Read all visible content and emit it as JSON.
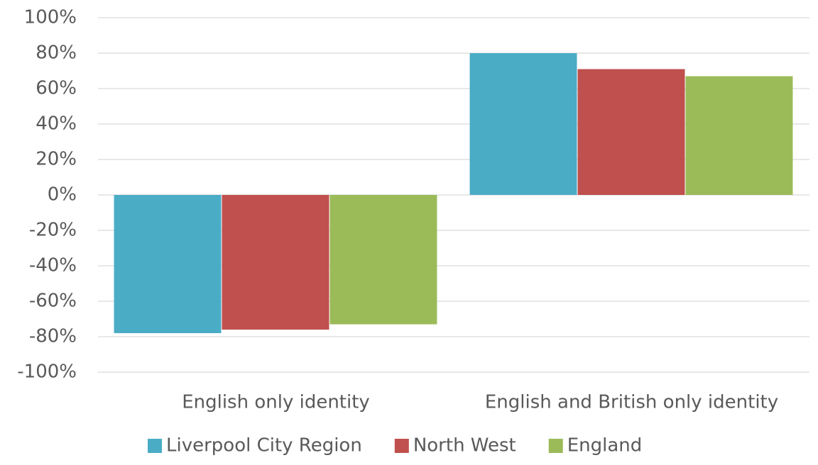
{
  "chart_data": {
    "type": "bar",
    "categories": [
      "English only identity",
      "English and British only identity"
    ],
    "series": [
      {
        "name": "Liverpool City Region",
        "color": "#4bacc6",
        "values": [
          -78,
          80
        ]
      },
      {
        "name": "North West",
        "color": "#c0504d",
        "values": [
          -76,
          71
        ]
      },
      {
        "name": "England",
        "color": "#9bbb59",
        "values": [
          -73,
          67
        ]
      }
    ],
    "ylim": [
      -100,
      100
    ],
    "yticks": [
      {
        "value": -100,
        "label": "-100%"
      },
      {
        "value": -80,
        "label": "-80%"
      },
      {
        "value": -60,
        "label": "-60%"
      },
      {
        "value": -40,
        "label": "-40%"
      },
      {
        "value": -20,
        "label": "-20%"
      },
      {
        "value": 0,
        "label": "0%"
      },
      {
        "value": 20,
        "label": "20%"
      },
      {
        "value": 40,
        "label": "40%"
      },
      {
        "value": 60,
        "label": "60%"
      },
      {
        "value": 80,
        "label": "80%"
      },
      {
        "value": 100,
        "label": "100%"
      }
    ],
    "grid": true,
    "legend": "bottom"
  }
}
